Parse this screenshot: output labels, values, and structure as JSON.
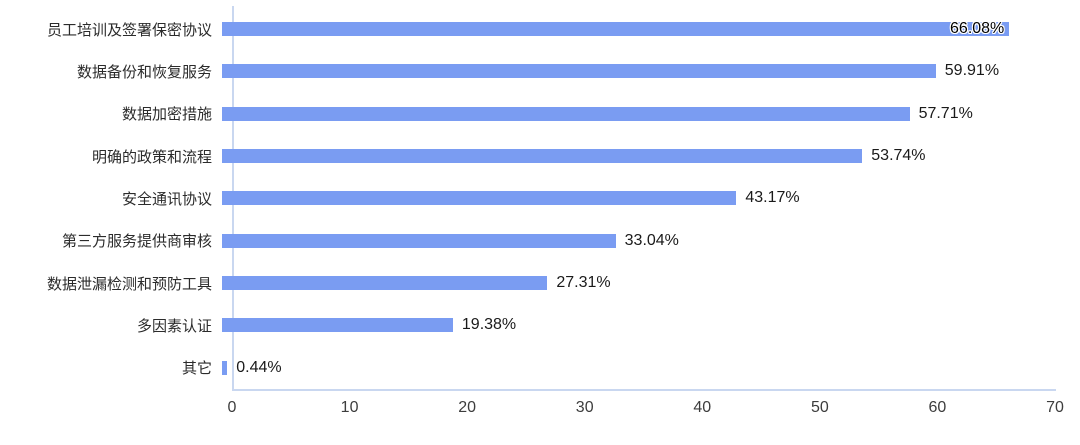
{
  "chart_data": {
    "type": "bar",
    "orientation": "horizontal",
    "title": "",
    "xlabel": "",
    "ylabel": "",
    "categories": [
      "员工培训及签署保密协议",
      "数据备份和恢复服务",
      "数据加密措施",
      "明确的政策和流程",
      "安全通讯协议",
      "第三方服务提供商审核",
      "数据泄漏检测和预防工具",
      "多因素认证",
      "其它"
    ],
    "values": [
      66.08,
      59.91,
      57.71,
      53.74,
      43.17,
      33.04,
      27.31,
      19.38,
      0.44
    ],
    "value_labels": [
      "66.08%",
      "59.91%",
      "57.71%",
      "53.74%",
      "43.17%",
      "33.04%",
      "27.31%",
      "19.38%",
      "0.44%"
    ],
    "xlim": [
      0,
      70
    ],
    "x_ticks": [
      "0",
      "10",
      "20",
      "30",
      "40",
      "50",
      "60",
      "70"
    ],
    "grid": false,
    "legend": "none",
    "colors": {
      "bar": "#7a9cf2",
      "axis_line": "#c9d7f0",
      "category_text": "#2b2b2b",
      "value_text": "#1a1a1a",
      "tick_text": "#3d3d3d",
      "background": "#ffffff"
    }
  }
}
